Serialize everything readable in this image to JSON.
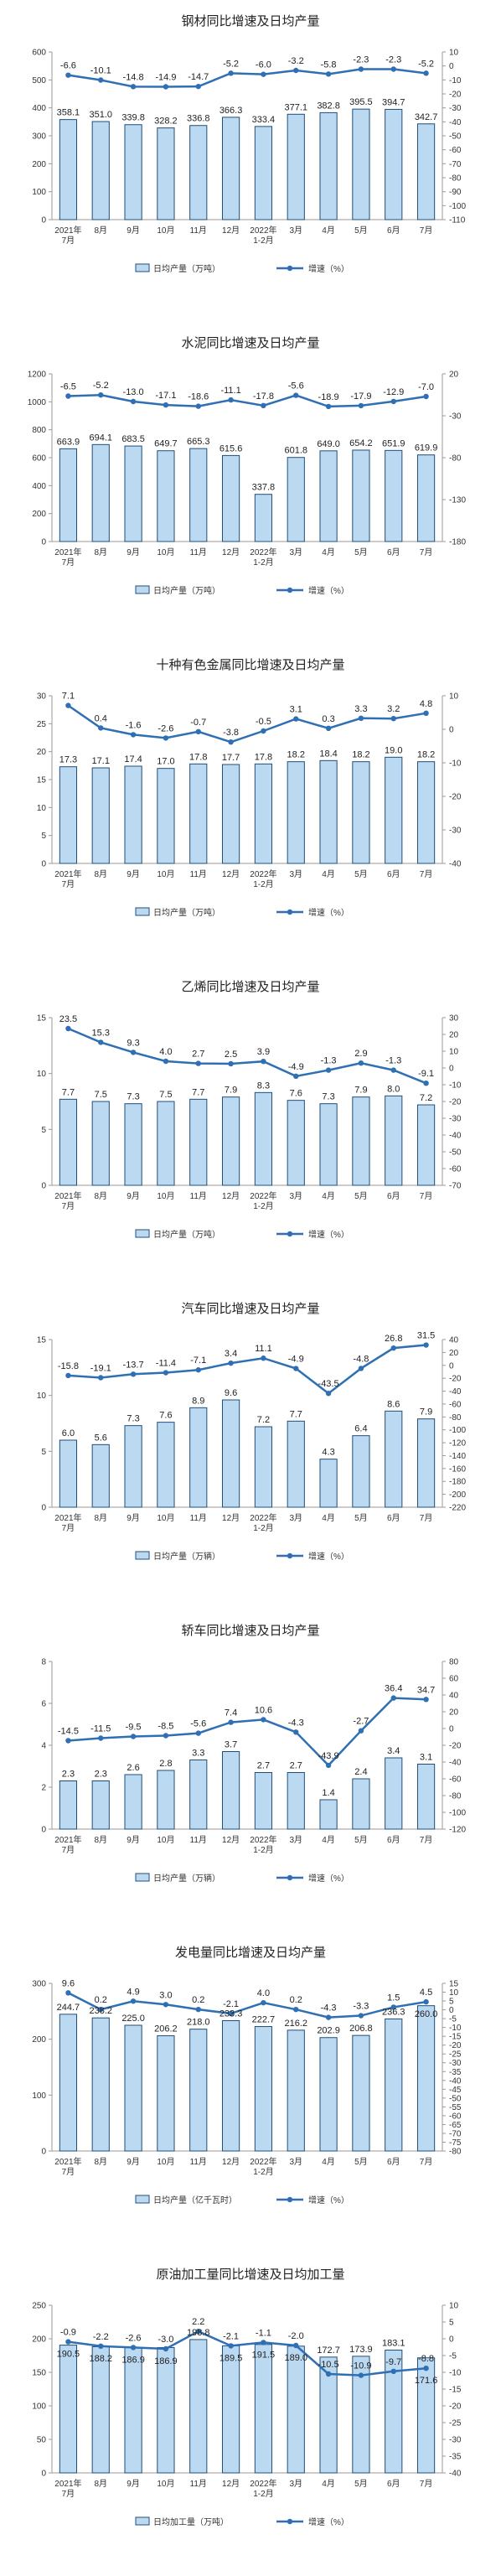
{
  "categories": [
    "2021年 7月",
    "8月",
    "9月",
    "10月",
    "11月",
    "12月",
    "2022年 1-2月",
    "3月",
    "4月",
    "5月",
    "6月",
    "7月"
  ],
  "colors": {
    "bar_fill": "#bcd9f2",
    "bar_stroke": "#1f4e79",
    "line": "#2f6fb3",
    "axis": "#999999",
    "grid": "#d9d9d9"
  },
  "chart_data": [
    {
      "type": "bar+line",
      "title": "钢材同比增速及日均产量",
      "bar_legend": "日均产量（万吨）",
      "line_legend": "增速（%）",
      "ylim": [
        0,
        600
      ],
      "yticks": [
        0,
        100,
        200,
        300,
        400,
        500,
        600
      ],
      "y2lim": [
        -110,
        10
      ],
      "y2ticks": [
        10,
        0,
        -10,
        -20,
        -30,
        -40,
        -50,
        -60,
        -70,
        -80,
        -90,
        -100,
        -110
      ],
      "bars": [
        358.1,
        351.0,
        339.8,
        328.2,
        336.8,
        366.3,
        333.4,
        377.1,
        382.8,
        395.5,
        394.7,
        342.7
      ],
      "bar_labels": [
        "358.1",
        "351.0",
        "339.8",
        "328.2",
        "336.8",
        "366.3",
        "333.4",
        "377.1",
        "382.8",
        "395.5",
        "394.7",
        "342.7"
      ],
      "line": [
        -6.6,
        -10.1,
        -14.8,
        -14.9,
        -14.7,
        -5.2,
        -6.0,
        -3.2,
        -5.8,
        -2.3,
        -2.3,
        -5.2
      ],
      "line_labels": [
        "-6.6",
        "-10.1",
        "-14.8",
        "-14.9",
        "-14.7",
        "-5.2",
        "-6.0",
        "-3.2",
        "-5.8",
        "-2.3",
        "-2.3",
        "-5.2"
      ]
    },
    {
      "type": "bar+line",
      "title": "水泥同比增速及日均产量",
      "bar_legend": "日均产量（万吨）",
      "line_legend": "增速（%）",
      "ylim": [
        0,
        1200
      ],
      "yticks": [
        0,
        200,
        400,
        600,
        800,
        1000,
        1200
      ],
      "y2lim": [
        -180,
        20
      ],
      "y2ticks": [
        20,
        -30,
        -80,
        -130,
        -180
      ],
      "bars": [
        663.9,
        694.1,
        683.5,
        649.7,
        665.3,
        615.6,
        337.8,
        601.8,
        649.0,
        654.2,
        651.9,
        619.9
      ],
      "bar_labels": [
        "663.9",
        "694.1",
        "683.5",
        "649.7",
        "665.3",
        "615.6",
        "337.8",
        "601.8",
        "649.0",
        "654.2",
        "651.9",
        "619.9"
      ],
      "line": [
        -6.5,
        -5.2,
        -13.0,
        -17.1,
        -18.6,
        -11.1,
        -17.8,
        -5.6,
        -18.9,
        -17.9,
        -12.9,
        -7.0
      ],
      "line_labels": [
        "-6.5",
        "-5.2",
        "-13.0",
        "-17.1",
        "-18.6",
        "-11.1",
        "-17.8",
        "-5.6",
        "-18.9",
        "-17.9",
        "-12.9",
        "-7.0"
      ]
    },
    {
      "type": "bar+line",
      "title": "十种有色金属同比增速及日均产量",
      "bar_legend": "日均产量（万吨）",
      "line_legend": "增速（%）",
      "ylim": [
        0,
        30
      ],
      "yticks": [
        0,
        5,
        10,
        15,
        20,
        25,
        30
      ],
      "y2lim": [
        -40,
        10
      ],
      "y2ticks": [
        10,
        0,
        -10,
        -20,
        -30,
        -40
      ],
      "bars": [
        17.3,
        17.1,
        17.4,
        17.0,
        17.8,
        17.7,
        17.8,
        18.2,
        18.4,
        18.2,
        19.0,
        18.2
      ],
      "bar_labels": [
        "17.3",
        "17.1",
        "17.4",
        "17.0",
        "17.8",
        "17.7",
        "17.8",
        "18.2",
        "18.4",
        "18.2",
        "19.0",
        "18.2"
      ],
      "line": [
        7.1,
        0.4,
        -1.6,
        -2.6,
        -0.7,
        -3.8,
        -0.5,
        3.1,
        0.3,
        3.3,
        3.2,
        4.8
      ],
      "line_labels": [
        "7.1",
        "0.4",
        "-1.6",
        "-2.6",
        "-0.7",
        "-3.8",
        "-0.5",
        "3.1",
        "0.3",
        "3.3",
        "3.2",
        "4.8"
      ]
    },
    {
      "type": "bar+line",
      "title": "乙烯同比增速及日均产量",
      "bar_legend": "日均产量（万吨）",
      "line_legend": "增速（%）",
      "ylim": [
        0,
        15
      ],
      "yticks": [
        0,
        5,
        10,
        15
      ],
      "y2lim": [
        -70,
        30
      ],
      "y2ticks": [
        30,
        20,
        10,
        0,
        -10,
        -20,
        -30,
        -40,
        -50,
        -60,
        -70
      ],
      "bars": [
        7.7,
        7.5,
        7.3,
        7.5,
        7.7,
        7.9,
        8.3,
        7.6,
        7.3,
        7.9,
        8.0,
        7.2
      ],
      "bar_labels": [
        "7.7",
        "7.5",
        "7.3",
        "7.5",
        "7.7",
        "7.9",
        "8.3",
        "7.6",
        "7.3",
        "7.9",
        "8.0",
        "7.2"
      ],
      "line": [
        23.5,
        15.3,
        9.3,
        4.0,
        2.7,
        2.5,
        3.9,
        -4.9,
        -1.3,
        2.9,
        -1.3,
        -9.1
      ],
      "line_labels": [
        "23.5",
        "15.3",
        "9.3",
        "4.0",
        "2.7",
        "2.5",
        "3.9",
        "-4.9",
        "-1.3",
        "2.9",
        "-1.3",
        "-9.1"
      ]
    },
    {
      "type": "bar+line",
      "title": "汽车同比增速及日均产量",
      "bar_legend": "日均产量（万辆）",
      "line_legend": "增速（%）",
      "ylim": [
        0,
        15
      ],
      "yticks": [
        0,
        5,
        10,
        15
      ],
      "y2lim": [
        -220,
        40
      ],
      "y2ticks": [
        40,
        20,
        0,
        -20,
        -40,
        -60,
        -80,
        -100,
        -120,
        -140,
        -160,
        -180,
        -200,
        -220
      ],
      "bars": [
        6.0,
        5.6,
        7.3,
        7.6,
        8.9,
        9.6,
        7.2,
        7.7,
        4.3,
        6.4,
        8.6,
        7.9
      ],
      "bar_labels": [
        "6.0",
        "5.6",
        "7.3",
        "7.6",
        "8.9",
        "9.6",
        "7.2",
        "7.7",
        "4.3",
        "6.4",
        "8.6",
        "7.9"
      ],
      "line": [
        -15.8,
        -19.1,
        -13.7,
        -11.4,
        -7.1,
        3.4,
        11.1,
        -4.9,
        -43.5,
        -4.8,
        26.8,
        31.5
      ],
      "line_labels": [
        "-15.8",
        "-19.1",
        "-13.7",
        "-11.4",
        "-7.1",
        "3.4",
        "11.1",
        "-4.9",
        "-43.5",
        "-4.8",
        "26.8",
        "31.5"
      ]
    },
    {
      "type": "bar+line",
      "title": "轿车同比增速及日均产量",
      "bar_legend": "日均产量（万辆）",
      "line_legend": "增速（%）",
      "ylim": [
        0,
        8
      ],
      "yticks": [
        0,
        2,
        4,
        6,
        8
      ],
      "y2lim": [
        -120,
        80
      ],
      "y2ticks": [
        80,
        60,
        40,
        20,
        0,
        -20,
        -40,
        -60,
        -80,
        -100,
        -120
      ],
      "bars": [
        2.3,
        2.3,
        2.6,
        2.8,
        3.3,
        3.7,
        2.7,
        2.7,
        1.4,
        2.4,
        3.4,
        3.1
      ],
      "bar_labels": [
        "2.3",
        "2.3",
        "2.6",
        "2.8",
        "3.3",
        "3.7",
        "2.7",
        "2.7",
        "1.4",
        "2.4",
        "3.4",
        "3.1"
      ],
      "line": [
        -14.5,
        -11.5,
        -9.5,
        -8.5,
        -5.6,
        7.4,
        10.6,
        -4.3,
        -43.9,
        -2.7,
        36.4,
        34.7
      ],
      "line_labels": [
        "-14.5",
        "-11.5",
        "-9.5",
        "-8.5",
        "-5.6",
        "7.4",
        "10.6",
        "-4.3",
        "-43.9",
        "-2.7",
        "36.4",
        "34.7"
      ]
    },
    {
      "type": "bar+line",
      "title": "发电量同比增速及日均产量",
      "bar_legend": "日均产量（亿千瓦时）",
      "line_legend": "增速（%）",
      "ylim": [
        0,
        300
      ],
      "yticks": [
        0,
        100,
        200,
        300
      ],
      "y2lim": [
        -80,
        15
      ],
      "y2ticks": [
        15,
        10,
        5,
        0,
        -5,
        -10,
        -15,
        -20,
        -25,
        -30,
        -35,
        -40,
        -45,
        -50,
        -55,
        -60,
        -65,
        -70,
        -75,
        -80
      ],
      "bars": [
        244.7,
        238.2,
        225.0,
        206.2,
        218.0,
        233.3,
        222.7,
        216.2,
        202.9,
        206.8,
        236.3,
        260.0
      ],
      "bar_labels": [
        "244.7",
        "238.2",
        "225.0",
        "206.2",
        "218.0",
        "233.3",
        "222.7",
        "216.2",
        "202.9",
        "206.8",
        "236.3",
        "260.0"
      ],
      "line": [
        9.6,
        0.2,
        4.9,
        3.0,
        0.2,
        -2.1,
        4.0,
        0.2,
        -4.3,
        -3.3,
        1.5,
        4.5
      ],
      "line_labels": [
        "9.6",
        "0.2",
        "4.9",
        "3.0",
        "0.2",
        "-2.1",
        "4.0",
        "0.2",
        "-4.3",
        "-3.3",
        "1.5",
        "4.5"
      ]
    },
    {
      "type": "bar+line",
      "title": "原油加工量同比增速及日均加工量",
      "bar_legend": "日均加工量（万吨）",
      "line_legend": "增速（%）",
      "ylim": [
        0,
        250
      ],
      "yticks": [
        0,
        50,
        100,
        150,
        200,
        250
      ],
      "y2lim": [
        -40,
        10
      ],
      "y2ticks": [
        10,
        5,
        0,
        -5,
        -10,
        -15,
        -20,
        -25,
        -30,
        -35,
        -40
      ],
      "bars": [
        190.5,
        188.2,
        186.9,
        186.9,
        198.8,
        189.5,
        191.5,
        189.0,
        172.7,
        173.9,
        183.1,
        171.6
      ],
      "bar_labels": [
        "190.5",
        "188.2",
        "186.9",
        "186.9",
        "198.8",
        "189.5",
        "191.5",
        "189.0",
        "172.7",
        "173.9",
        "183.1",
        "171.6"
      ],
      "line": [
        -0.9,
        -2.2,
        -2.6,
        -3.0,
        2.2,
        -2.1,
        -1.1,
        -2.0,
        -10.5,
        -10.9,
        -9.7,
        -8.8
      ],
      "line_labels": [
        "-0.9",
        "-2.2",
        "-2.6",
        "-3.0",
        "2.2",
        "-2.1",
        "-1.1",
        "-2.0",
        "-10.5",
        "-10.9",
        "-9.7",
        "-8.8"
      ]
    }
  ]
}
